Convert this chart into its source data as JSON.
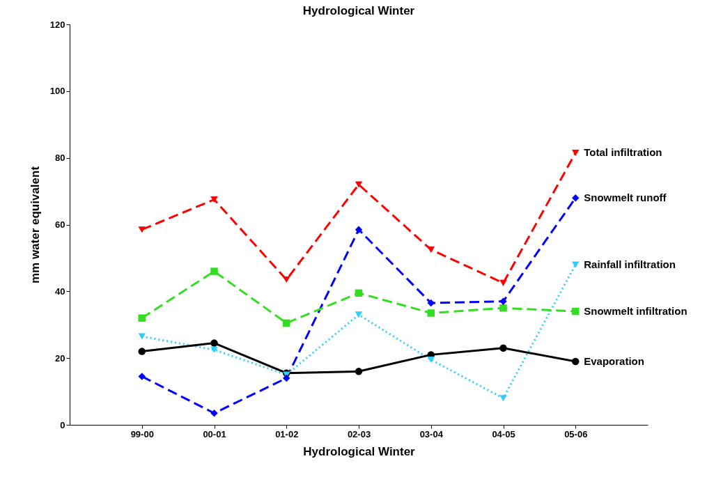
{
  "chart_data": {
    "type": "line",
    "title": "Hydrological Winter",
    "xlabel": "Hydrological Winter",
    "ylabel": "mm water equivalent",
    "categories": [
      "99-00",
      "00-01",
      "01-02",
      "02-03",
      "03-04",
      "04-05",
      "05-06"
    ],
    "ylim": [
      0,
      120
    ],
    "yticks": [
      0,
      20,
      40,
      60,
      80,
      100,
      120
    ],
    "grid": false,
    "legend": false,
    "series": [
      {
        "name": "Total infiltration",
        "color": "#ff0000",
        "marker": "triangle",
        "line_style": "dashed",
        "values": [
          58.5,
          67.5,
          43.5,
          72,
          52.5,
          42.5,
          81.5
        ]
      },
      {
        "name": "Snowmelt runoff",
        "color": "#0000ff",
        "marker": "diamond",
        "line_style": "dashed",
        "values": [
          14.5,
          3.5,
          14,
          58.5,
          36.5,
          37,
          68
        ]
      },
      {
        "name": "Rainfall infiltration",
        "color": "#33ccff",
        "marker": "triangle",
        "line_style": "dotted",
        "values": [
          26.5,
          22.5,
          15,
          33,
          19.5,
          8,
          48
        ]
      },
      {
        "name": "Snowmelt infiltration",
        "color": "#33dd22",
        "marker": "square",
        "line_style": "dashed",
        "values": [
          32,
          46,
          30.5,
          39.5,
          33.5,
          35,
          34
        ]
      },
      {
        "name": "Evaporation",
        "color": "#000000",
        "marker": "circle",
        "line_style": "solid",
        "values": [
          22,
          24.5,
          15.5,
          16,
          21,
          23,
          19
        ]
      }
    ]
  }
}
